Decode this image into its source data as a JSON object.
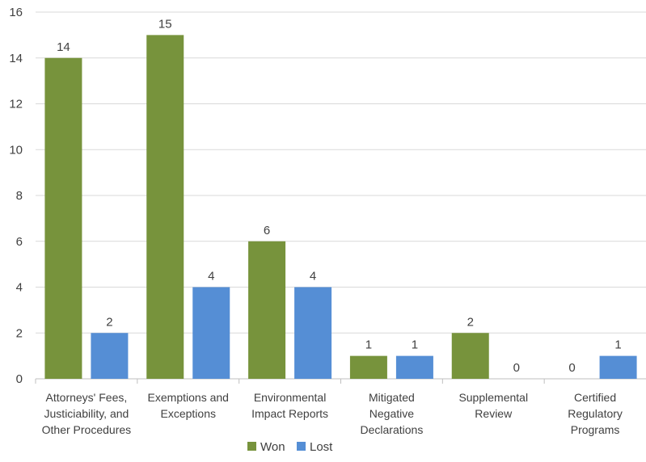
{
  "chart_data": {
    "type": "bar",
    "title": "",
    "xlabel": "",
    "ylabel": "",
    "ylim": [
      0,
      16
    ],
    "yticks": [
      0,
      2,
      4,
      6,
      8,
      10,
      12,
      14,
      16
    ],
    "grid": true,
    "legend_position": "bottom",
    "categories": [
      [
        "Attorneys' Fees,",
        "Justiciability, and",
        "Other Procedures"
      ],
      [
        "Exemptions and",
        "Exceptions"
      ],
      [
        "Environmental",
        "Impact Reports"
      ],
      [
        "Mitigated",
        "Negative",
        "Declarations"
      ],
      [
        "Supplemental",
        "Review"
      ],
      [
        "Certified",
        "Regulatory",
        "Programs"
      ]
    ],
    "series": [
      {
        "name": "Won",
        "color": "#77933C",
        "values": [
          14,
          15,
          6,
          1,
          2,
          0
        ]
      },
      {
        "name": "Lost",
        "color": "#558ED5",
        "values": [
          2,
          4,
          4,
          1,
          0,
          1
        ]
      }
    ]
  }
}
